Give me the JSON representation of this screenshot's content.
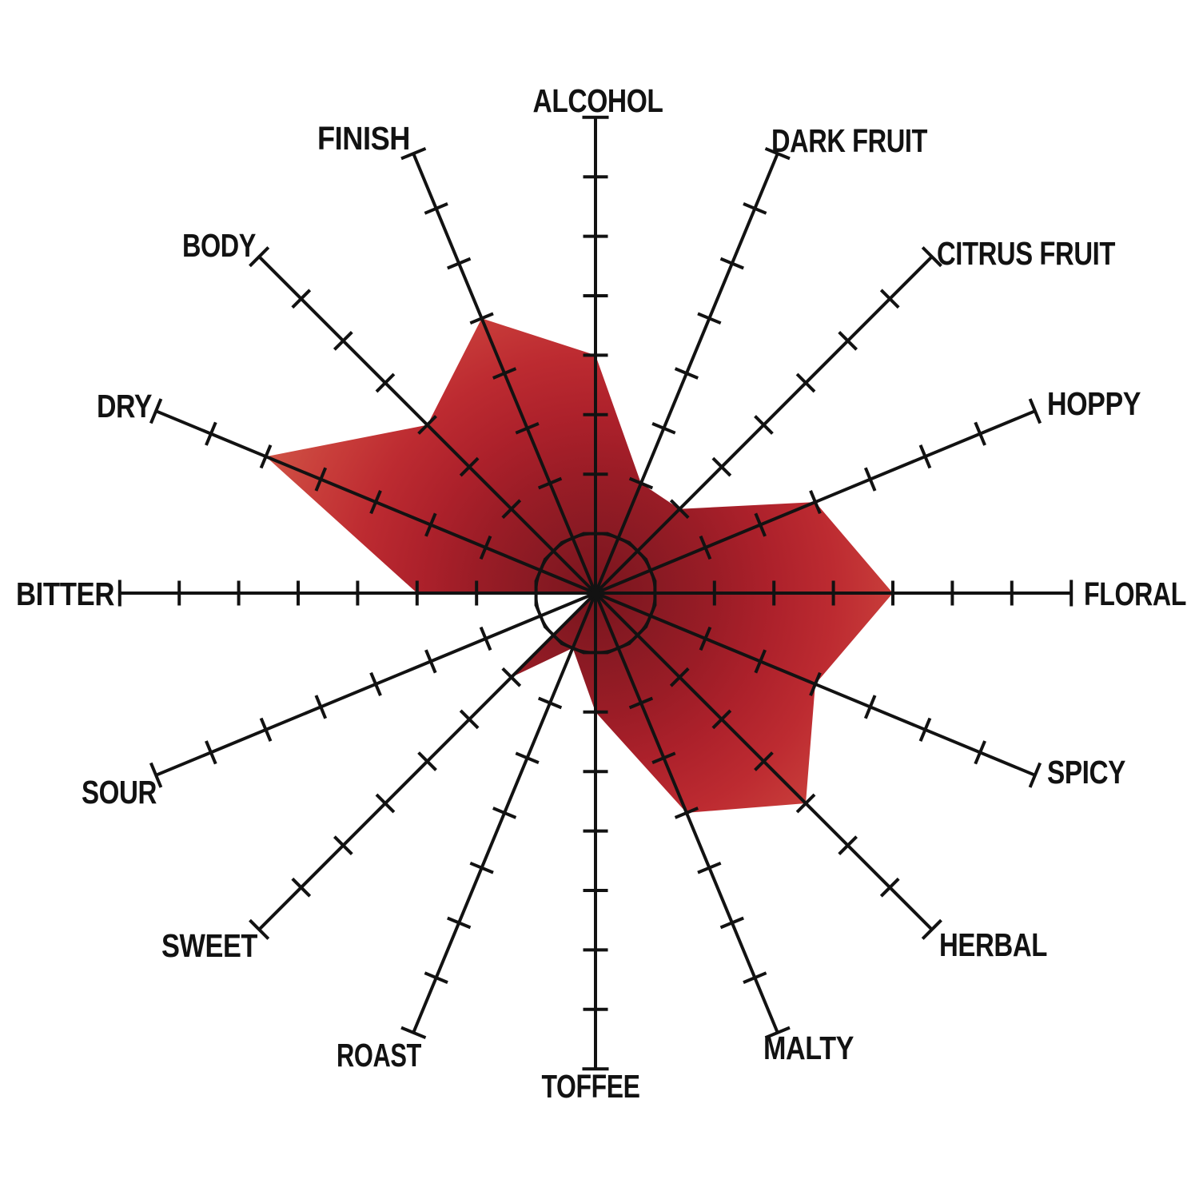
{
  "page": {
    "background": "#ffffff"
  },
  "chart_data": {
    "type": "radar",
    "description": "16-axis beer flavor profile radar chart with red radial-gradient polygon",
    "scale": {
      "min": 0,
      "max": 8,
      "tick_interval": 1,
      "ticks_per_axis": 8,
      "inner_reference_circle_at": 1
    },
    "legend_position": "none",
    "grid": "tick marks on each spoke plus one inner reference circle",
    "axes": [
      {
        "label": "ALCOHOL",
        "value": 4
      },
      {
        "label": "DARK FRUIT",
        "value": 2
      },
      {
        "label": "CITRUS FRUIT",
        "value": 2
      },
      {
        "label": "HOPPY",
        "value": 4
      },
      {
        "label": "FLORAL",
        "value": 5
      },
      {
        "label": "SPICY",
        "value": 4
      },
      {
        "label": "HERBAL",
        "value": 5
      },
      {
        "label": "MALTY",
        "value": 4
      },
      {
        "label": "TOFFEE",
        "value": 2
      },
      {
        "label": "ROAST",
        "value": 1
      },
      {
        "label": "SWEET",
        "value": 2
      },
      {
        "label": "SOUR",
        "value": 0
      },
      {
        "label": "BITTER",
        "value": 3
      },
      {
        "label": "DRY",
        "value": 6
      },
      {
        "label": "BODY",
        "value": 4
      },
      {
        "label": "FINISH",
        "value": 5
      }
    ],
    "style": {
      "background": "#ffffff",
      "axis_color": "#121212",
      "label_color": "#121212",
      "polygon_gradient_center": "#7a141d",
      "polygon_gradient_edge": "#d56853",
      "gradient_stops": [
        {
          "offset": 0.0,
          "color": "#7a141d"
        },
        {
          "offset": 0.13,
          "color": "#891a23"
        },
        {
          "offset": 0.25,
          "color": "#9a1c26"
        },
        {
          "offset": 0.37,
          "color": "#ad212b"
        },
        {
          "offset": 0.5,
          "color": "#bd2b31"
        },
        {
          "offset": 0.62,
          "color": "#c83d3a"
        },
        {
          "offset": 0.74,
          "color": "#cf5245"
        },
        {
          "offset": 0.88,
          "color": "#d3614f"
        },
        {
          "offset": 1.0,
          "color": "#d56853"
        }
      ]
    }
  }
}
